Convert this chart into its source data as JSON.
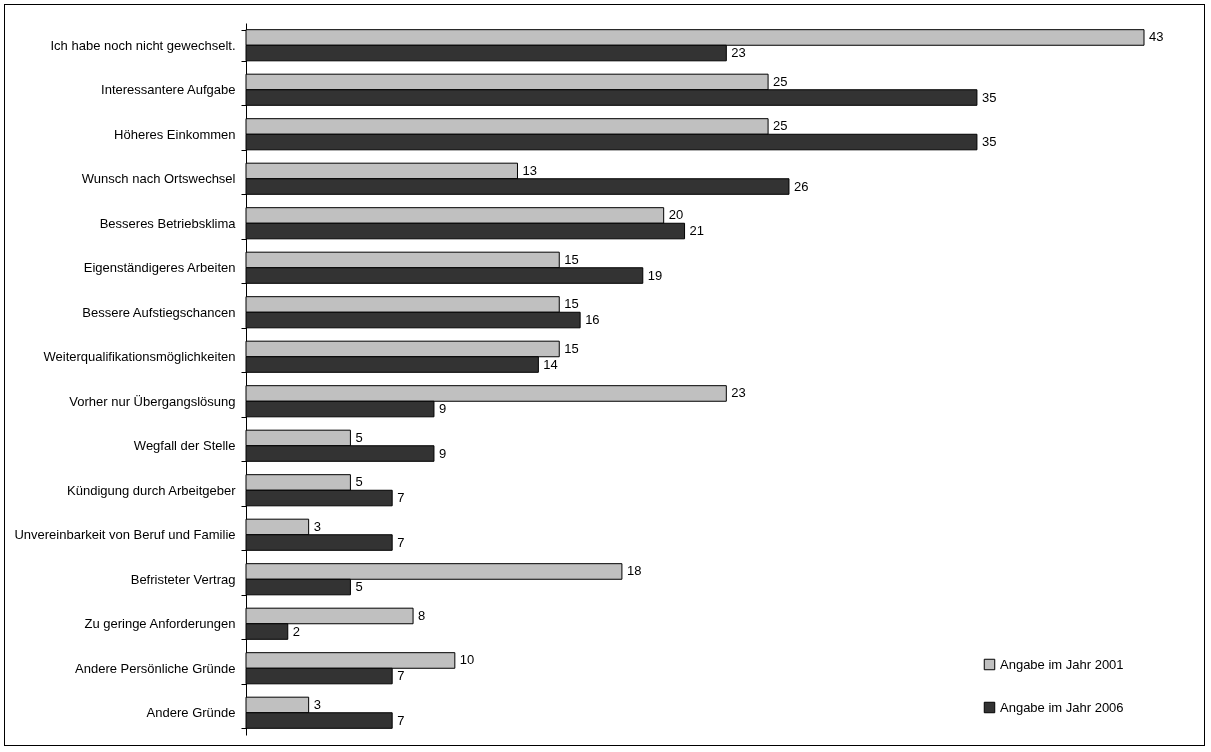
{
  "chart_data": {
    "type": "bar",
    "orientation": "horizontal",
    "categories": [
      "Ich habe noch nicht gewechselt.",
      "Interessantere Aufgabe",
      "Höheres Einkommen",
      "Wunsch nach Ortswechsel",
      "Besseres Betriebsklima",
      "Eigenständigeres Arbeiten",
      "Bessere Aufstiegschancen",
      "Weiterqualifikationsmöglichkeiten",
      "Vorher nur Übergangslösung",
      "Wegfall der Stelle",
      "Kündigung durch Arbeitgeber",
      "Unvereinbarkeit von Beruf und Familie",
      "Befristeter Vertrag",
      "Zu geringe Anforderungen",
      "Andere Persönliche Gründe",
      "Andere Gründe"
    ],
    "series": [
      {
        "name": "Angabe im Jahr 2001",
        "color": "#c0c0c0",
        "values": [
          43,
          25,
          25,
          13,
          20,
          15,
          15,
          15,
          23,
          5,
          5,
          3,
          18,
          8,
          10,
          3
        ]
      },
      {
        "name": "Angabe im Jahr 2006",
        "color": "#333333",
        "values": [
          23,
          35,
          35,
          26,
          21,
          19,
          16,
          14,
          9,
          9,
          7,
          7,
          5,
          2,
          7,
          7
        ]
      }
    ],
    "data_labels": true,
    "legend": "bottom right"
  }
}
